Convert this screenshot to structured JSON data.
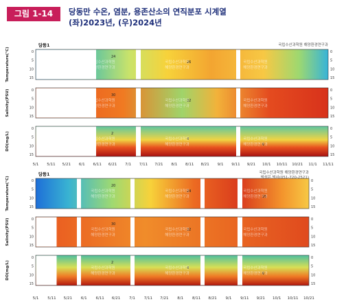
{
  "figure": {
    "number": "그림 1-14",
    "title_line1": "당동만 수온, 염분, 용존산소의 연직분포 시계열",
    "title_line2": "(좌)2023년, (우)2024년"
  },
  "colors": {
    "badge": "#c81e5a",
    "title": "#1e2f7a"
  },
  "chart_data": [
    {
      "type": "heatmap",
      "panel_title": "당동1",
      "credit": "국립수산과학원 해양환경연구과",
      "watermark": "국립수산과학원\n해양환경연구과",
      "y_depth_ticks": [
        0,
        5,
        10,
        15
      ],
      "x_tick_labels": [
        "5/1",
        "5/11",
        "5/21",
        "6/1",
        "6/11",
        "6/21",
        "7/1",
        "7/11",
        "7/21",
        "8/1",
        "8/11",
        "8/21",
        "9/1",
        "9/11",
        "9/21",
        "10/1",
        "10/11",
        "10/21",
        "11/1",
        "11/11"
      ],
      "series": [
        {
          "variable": "Temperature",
          "ylabel": "Temperature(℃)",
          "colormap": "jet",
          "contour_labels": [
            "24",
            "26"
          ]
        },
        {
          "variable": "Salinity",
          "ylabel": "Salinity(PSU)",
          "colormap": "jet",
          "contour_labels": [
            "30",
            "32"
          ]
        },
        {
          "variable": "DO",
          "ylabel": "DO(mg/L)",
          "colormap": "jet_reversed",
          "contour_labels": [
            "2",
            "4",
            "6"
          ]
        }
      ]
    },
    {
      "type": "heatmap",
      "panel_title": "당동1",
      "credit": "국립수산과학원 해양환경연구과",
      "credit2": "박성은 박사(051-720-2521)",
      "watermark": "국립수산과학원\n해양환경연구과",
      "y_depth_ticks": [
        0,
        5,
        10,
        15
      ],
      "x_tick_labels": [
        "5/1",
        "5/11",
        "5/21",
        "6/1",
        "6/11",
        "6/21",
        "7/1",
        "7/11",
        "7/21",
        "8/1",
        "8/11",
        "8/21",
        "9/1",
        "9/11",
        "9/21",
        "10/1",
        "10/11",
        "10/21"
      ],
      "series": [
        {
          "variable": "Temperature",
          "ylabel": "Temperature(℃)",
          "colormap": "jet",
          "contour_labels": [
            "20",
            "24",
            "26"
          ]
        },
        {
          "variable": "Salinity",
          "ylabel": "Salinity(PSU)",
          "colormap": "jet",
          "contour_labels": [
            "30",
            "32"
          ]
        },
        {
          "variable": "DO",
          "ylabel": "DO(mg/L)",
          "colormap": "jet_reversed",
          "contour_labels": [
            "2",
            "4",
            "6"
          ]
        }
      ]
    }
  ]
}
